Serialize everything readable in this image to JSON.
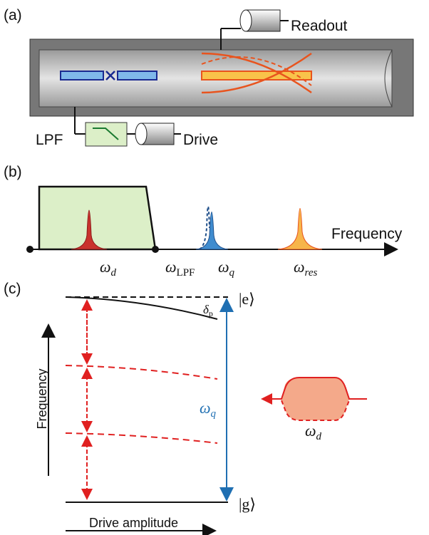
{
  "panel_a": {
    "label": "(a)",
    "readout": "Readout",
    "lpf": "LPF",
    "drive": "Drive"
  },
  "panel_b": {
    "label": "(b)",
    "axis_label": "Frequency",
    "omega_d": {
      "symbol": "ω",
      "sub": "d"
    },
    "omega_lpf": {
      "symbol": "ω",
      "sub": "LPF"
    },
    "omega_q": {
      "symbol": "ω",
      "sub": "q"
    },
    "omega_res": {
      "symbol": "ω",
      "sub": "res"
    }
  },
  "panel_c": {
    "label": "(c)",
    "excited": "|e⟩",
    "ground": "|g⟩",
    "delta": {
      "symbol": "δ",
      "sub": "p"
    },
    "omega_q": {
      "symbol": "ω",
      "sub": "q"
    },
    "omega_d": {
      "symbol": "ω",
      "sub": "d"
    },
    "y_label": "Frequency",
    "x_label": "Drive amplitude"
  }
}
